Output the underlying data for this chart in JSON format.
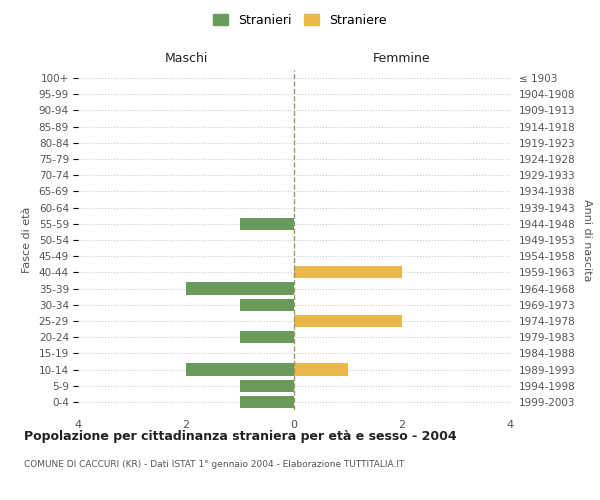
{
  "age_groups_bottom_to_top": [
    "0-4",
    "5-9",
    "10-14",
    "15-19",
    "20-24",
    "25-29",
    "30-34",
    "35-39",
    "40-44",
    "45-49",
    "50-54",
    "55-59",
    "60-64",
    "65-69",
    "70-74",
    "75-79",
    "80-84",
    "85-89",
    "90-94",
    "95-99",
    "100+"
  ],
  "birth_years_bottom_to_top": [
    "1999-2003",
    "1994-1998",
    "1989-1993",
    "1984-1988",
    "1979-1983",
    "1974-1978",
    "1969-1973",
    "1964-1968",
    "1959-1963",
    "1954-1958",
    "1949-1953",
    "1944-1948",
    "1939-1943",
    "1934-1938",
    "1929-1933",
    "1924-1928",
    "1919-1923",
    "1914-1918",
    "1909-1913",
    "1904-1908",
    "≤ 1903"
  ],
  "maschi_stranieri": [
    1,
    1,
    2,
    0,
    1,
    0,
    1,
    2,
    0,
    0,
    0,
    1,
    0,
    0,
    0,
    0,
    0,
    0,
    0,
    0,
    0
  ],
  "femmine_straniere": [
    0,
    0,
    1,
    0,
    0,
    2,
    0,
    0,
    2,
    0,
    0,
    0,
    0,
    0,
    0,
    0,
    0,
    0,
    0,
    0,
    0
  ],
  "color_maschi": "#6a9a5a",
  "color_femmine": "#e8b84b",
  "title": "Popolazione per cittadinanza straniera per età e sesso - 2004",
  "subtitle": "COMUNE DI CACCURI (KR) - Dati ISTAT 1° gennaio 2004 - Elaborazione TUTTITALIA.IT",
  "legend_maschi": "Stranieri",
  "legend_femmine": "Straniere",
  "header_left": "Maschi",
  "header_right": "Femmine",
  "ylabel_left": "Fasce di età",
  "ylabel_right": "Anni di nascita",
  "xlim": 4,
  "xticks": [
    -4,
    -2,
    0,
    2,
    4
  ],
  "xtick_labels": [
    "4",
    "2",
    "0",
    "2",
    "4"
  ],
  "background_color": "#ffffff",
  "grid_color": "#cccccc",
  "center_line_color": "#999966",
  "text_color_dark": "#222222",
  "text_color_mid": "#555555",
  "text_color_light": "#999999"
}
